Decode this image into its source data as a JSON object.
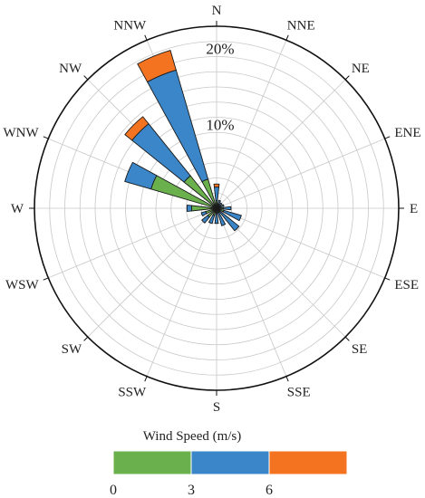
{
  "chart_data": {
    "type": "polar-bar",
    "title": "",
    "radial_axis": {
      "max": 24,
      "step": 2,
      "labeled_ticks": [
        10,
        20
      ],
      "tick_suffix": "%"
    },
    "directions": [
      "N",
      "NNE",
      "NE",
      "ENE",
      "E",
      "ESE",
      "SE",
      "SSE",
      "S",
      "SSW",
      "SW",
      "WSW",
      "W",
      "WNW",
      "NW",
      "NNW"
    ],
    "series": [
      {
        "values": [
          1.0,
          0.6,
          0.4,
          0.4,
          0.9,
          1.0,
          0.6,
          0.6,
          0.6,
          1.0,
          1.5,
          1.5,
          3.3,
          9.0,
          5.5,
          4.0
        ]
      },
      {
        "values": [
          1.8,
          0.5,
          0.5,
          0.6,
          1.0,
          2.4,
          3.2,
          1.8,
          1.4,
          1.1,
          1.0,
          0.6,
          0.6,
          3.6,
          8.8,
          15.0
        ]
      },
      {
        "values": [
          0.4,
          0.0,
          0.0,
          0.0,
          0.0,
          0.0,
          0.0,
          0.0,
          0.0,
          0.0,
          0.0,
          0.0,
          0.0,
          0.0,
          1.2,
          2.7
        ]
      }
    ],
    "colors": [
      "#6ab04c",
      "#3a86c8",
      "#f47320"
    ],
    "grid": true,
    "legend": {
      "title": "Wind Speed (m/s)",
      "placement": "bottom",
      "tick_labels": [
        "0",
        "3",
        "6"
      ]
    }
  }
}
